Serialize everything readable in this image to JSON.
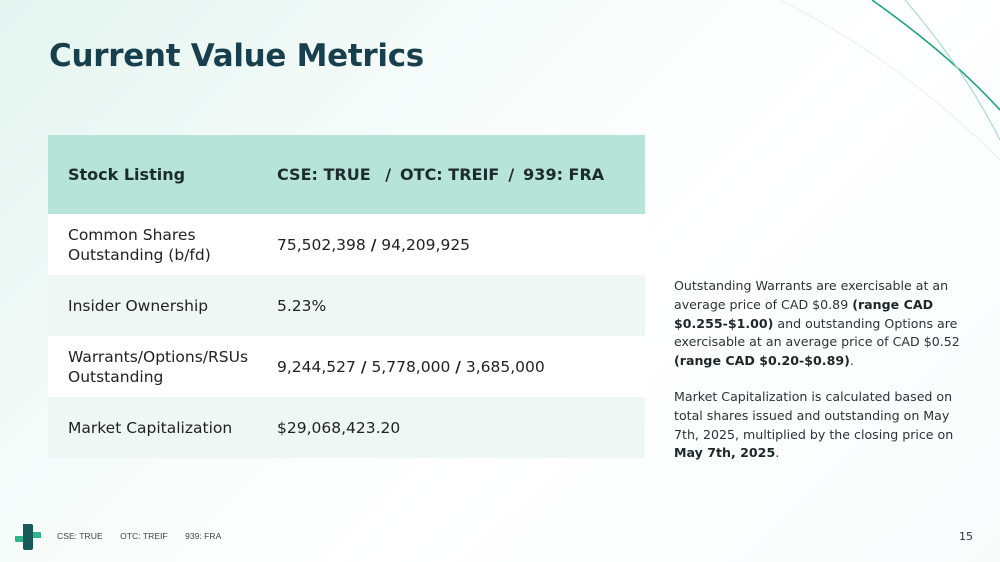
{
  "title": "Current Value Metrics",
  "table": {
    "header": {
      "label": "Stock Listing",
      "parts": [
        "CSE: TRUE",
        "OTC: TREIF",
        "939: FRA"
      ]
    },
    "rows": [
      {
        "label": "Common Shares Outstanding (b/fd)",
        "values": [
          "75,502,398",
          "94,209,925"
        ]
      },
      {
        "label": "Insider Ownership",
        "values": [
          "5.23%"
        ]
      },
      {
        "label": "Warrants/Options/RSUs Outstanding",
        "values": [
          "9,244,527",
          "5,778,000",
          "3,685,000"
        ]
      },
      {
        "label": "Market Capitalization",
        "values": [
          "$29,068,423.20"
        ]
      }
    ]
  },
  "notes": {
    "p1": {
      "t1": "Outstanding Warrants are exercisable at an average price of CAD $0.89 ",
      "b1": "(range CAD $0.255-$1.00)",
      "t2": " and outstanding Options are exercisable at an average price of CAD $0.52 ",
      "b2": "(range CAD $0.20-$0.89)",
      "t3": "."
    },
    "p2": {
      "t1": "Market Capitalization is calculated based on total shares issued and outstanding on May 7th, 2025, multiplied by the closing price on ",
      "b1": "May 7th, 2025",
      "t2": "."
    }
  },
  "footer": {
    "items": [
      "CSE: TRUE",
      "OTC: TREIF",
      "939: FRA"
    ],
    "page": "15"
  },
  "colors": {
    "title": "#173f4e",
    "header_bg": "#b6e4d6",
    "accent": "#2bb58a",
    "logo_dark": "#165a5a"
  },
  "icons": {
    "logo": "cross-logo-icon"
  }
}
